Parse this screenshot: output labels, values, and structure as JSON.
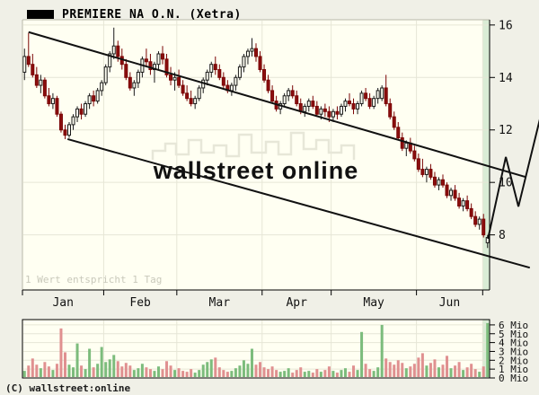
{
  "chart_data": {
    "type": "candlestick",
    "title": "PREMIERE NA O.N. (Xetra)",
    "period_note": "1 Wert entspricht 1 Tag",
    "watermark": "wallstreet online",
    "copyright": "(C) wallstreet:online",
    "x_axis": {
      "month_labels": [
        "Jan",
        "Feb",
        "Mar",
        "Apr",
        "May",
        "Jun"
      ],
      "month_boundaries_index": [
        0,
        20,
        38,
        59,
        76,
        97,
        113.3
      ]
    },
    "y_axis": {
      "ticks": [
        16,
        14,
        12,
        10,
        8
      ],
      "range": [
        5.9,
        16.2
      ]
    },
    "volume_axis": {
      "ticks": [
        6,
        5,
        4,
        3,
        2,
        1,
        0
      ],
      "suffix": "Mio",
      "range": [
        0,
        6.6
      ]
    },
    "candles": [
      [
        14.2,
        15.1,
        13.9,
        14.8
      ],
      [
        14.8,
        15.7,
        14.4,
        14.5
      ],
      [
        14.5,
        14.9,
        14.0,
        14.1
      ],
      [
        14.1,
        14.4,
        13.6,
        13.7
      ],
      [
        13.7,
        14.1,
        13.4,
        13.9
      ],
      [
        13.9,
        14.0,
        13.2,
        13.3
      ],
      [
        13.3,
        13.6,
        12.9,
        13.0
      ],
      [
        13.0,
        13.4,
        12.8,
        13.2
      ],
      [
        13.2,
        13.3,
        12.5,
        12.6
      ],
      [
        12.6,
        12.7,
        11.9,
        12.0
      ],
      [
        12.0,
        12.2,
        11.65,
        11.8
      ],
      [
        11.8,
        12.3,
        11.7,
        12.2
      ],
      [
        12.2,
        12.6,
        12.0,
        12.5
      ],
      [
        12.5,
        12.9,
        12.3,
        12.8
      ],
      [
        12.8,
        13.0,
        12.4,
        12.6
      ],
      [
        12.6,
        13.1,
        12.5,
        13.0
      ],
      [
        13.0,
        13.4,
        12.8,
        13.3
      ],
      [
        13.3,
        13.5,
        12.9,
        13.1
      ],
      [
        13.1,
        13.6,
        13.0,
        13.5
      ],
      [
        13.5,
        13.9,
        13.3,
        13.8
      ],
      [
        13.8,
        14.5,
        13.7,
        14.4
      ],
      [
        14.4,
        15.0,
        14.2,
        14.9
      ],
      [
        14.9,
        15.9,
        14.7,
        15.2
      ],
      [
        15.2,
        15.4,
        14.6,
        14.8
      ],
      [
        14.8,
        15.1,
        14.3,
        14.5
      ],
      [
        14.5,
        14.7,
        13.9,
        14.0
      ],
      [
        14.0,
        14.2,
        13.5,
        13.6
      ],
      [
        13.6,
        13.9,
        13.3,
        13.8
      ],
      [
        13.8,
        14.3,
        13.6,
        14.2
      ],
      [
        14.2,
        14.8,
        14.0,
        14.7
      ],
      [
        14.7,
        15.1,
        14.4,
        14.6
      ],
      [
        14.6,
        14.9,
        14.1,
        14.3
      ],
      [
        14.3,
        14.6,
        13.8,
        14.5
      ],
      [
        14.5,
        15.0,
        14.3,
        14.9
      ],
      [
        14.9,
        15.2,
        14.5,
        14.7
      ],
      [
        14.7,
        14.9,
        14.0,
        14.1
      ],
      [
        14.1,
        14.4,
        13.7,
        13.9
      ],
      [
        13.9,
        14.2,
        13.5,
        14.0
      ],
      [
        14.0,
        14.3,
        13.6,
        13.7
      ],
      [
        13.7,
        13.9,
        13.3,
        13.4
      ],
      [
        13.4,
        13.7,
        13.1,
        13.2
      ],
      [
        13.2,
        13.5,
        12.9,
        13.0
      ],
      [
        13.0,
        13.3,
        12.8,
        13.2
      ],
      [
        13.2,
        13.7,
        13.1,
        13.6
      ],
      [
        13.6,
        14.0,
        13.4,
        13.9
      ],
      [
        13.9,
        14.3,
        13.7,
        14.2
      ],
      [
        14.2,
        14.6,
        14.0,
        14.5
      ],
      [
        14.5,
        14.8,
        14.1,
        14.3
      ],
      [
        14.3,
        14.5,
        13.9,
        14.0
      ],
      [
        14.0,
        14.2,
        13.6,
        13.7
      ],
      [
        13.7,
        13.9,
        13.4,
        13.5
      ],
      [
        13.5,
        13.8,
        13.3,
        13.7
      ],
      [
        13.7,
        14.1,
        13.5,
        14.0
      ],
      [
        14.0,
        14.5,
        13.9,
        14.4
      ],
      [
        14.4,
        14.9,
        14.2,
        14.8
      ],
      [
        14.8,
        15.1,
        14.5,
        15.0
      ],
      [
        15.0,
        15.5,
        14.8,
        15.1
      ],
      [
        15.1,
        15.3,
        14.6,
        14.8
      ],
      [
        14.8,
        15.0,
        14.2,
        14.3
      ],
      [
        14.3,
        14.5,
        13.8,
        13.9
      ],
      [
        13.9,
        14.1,
        13.4,
        13.5
      ],
      [
        13.5,
        13.7,
        13.0,
        13.1
      ],
      [
        13.1,
        13.3,
        12.7,
        12.8
      ],
      [
        12.8,
        13.1,
        12.6,
        13.0
      ],
      [
        13.0,
        13.4,
        12.9,
        13.3
      ],
      [
        13.3,
        13.6,
        13.1,
        13.5
      ],
      [
        13.5,
        13.7,
        13.2,
        13.3
      ],
      [
        13.3,
        13.5,
        12.9,
        13.0
      ],
      [
        13.0,
        13.2,
        12.6,
        12.7
      ],
      [
        12.7,
        13.0,
        12.5,
        12.9
      ],
      [
        12.9,
        13.2,
        12.7,
        13.1
      ],
      [
        13.1,
        13.3,
        12.8,
        12.9
      ],
      [
        12.9,
        13.1,
        12.5,
        12.6
      ],
      [
        12.6,
        12.9,
        12.4,
        12.8
      ],
      [
        12.8,
        13.0,
        12.5,
        12.7
      ],
      [
        12.7,
        12.9,
        12.3,
        12.5
      ],
      [
        12.5,
        12.8,
        12.3,
        12.7
      ],
      [
        12.7,
        12.9,
        12.4,
        12.6
      ],
      [
        12.6,
        13.0,
        12.5,
        12.9
      ],
      [
        12.9,
        13.2,
        12.7,
        13.1
      ],
      [
        13.1,
        13.4,
        12.9,
        13.0
      ],
      [
        13.0,
        13.2,
        12.6,
        12.8
      ],
      [
        12.8,
        13.1,
        12.6,
        13.0
      ],
      [
        13.0,
        13.5,
        12.9,
        13.4
      ],
      [
        13.4,
        13.6,
        13.1,
        13.2
      ],
      [
        13.2,
        13.4,
        12.8,
        12.9
      ],
      [
        12.9,
        13.3,
        12.8,
        13.2
      ],
      [
        13.2,
        13.6,
        13.0,
        13.5
      ],
      [
        13.2,
        13.7,
        13.1,
        13.6
      ],
      [
        13.6,
        14.1,
        12.9,
        13.0
      ],
      [
        13.0,
        13.2,
        12.4,
        12.5
      ],
      [
        12.5,
        12.7,
        12.0,
        12.1
      ],
      [
        12.1,
        12.3,
        11.6,
        11.7
      ],
      [
        11.7,
        11.9,
        11.2,
        11.3
      ],
      [
        11.3,
        11.6,
        11.0,
        11.5
      ],
      [
        11.5,
        11.7,
        11.1,
        11.2
      ],
      [
        11.2,
        11.4,
        10.8,
        10.9
      ],
      [
        10.9,
        11.1,
        10.4,
        10.5
      ],
      [
        10.5,
        10.9,
        10.2,
        10.3
      ],
      [
        10.3,
        10.6,
        10.0,
        10.5
      ],
      [
        10.5,
        10.7,
        10.1,
        10.2
      ],
      [
        10.2,
        10.4,
        9.8,
        9.9
      ],
      [
        9.9,
        10.2,
        9.7,
        10.1
      ],
      [
        10.1,
        10.3,
        9.8,
        9.9
      ],
      [
        9.9,
        10.0,
        9.4,
        9.5
      ],
      [
        9.5,
        9.8,
        9.3,
        9.7
      ],
      [
        9.7,
        9.9,
        9.3,
        9.4
      ],
      [
        9.4,
        9.6,
        9.0,
        9.1
      ],
      [
        9.1,
        9.4,
        8.9,
        9.3
      ],
      [
        9.3,
        9.5,
        8.9,
        9.0
      ],
      [
        9.0,
        9.2,
        8.6,
        8.7
      ],
      [
        8.7,
        8.9,
        8.3,
        8.4
      ],
      [
        8.4,
        8.7,
        8.2,
        8.6
      ],
      [
        8.6,
        8.8,
        7.9,
        8.0
      ],
      [
        7.7,
        8.0,
        7.5,
        7.9
      ]
    ],
    "volumes_mio": [
      0.8,
      1.4,
      2.2,
      1.5,
      1.1,
      1.8,
      1.3,
      0.9,
      1.6,
      5.6,
      2.9,
      1.5,
      1.2,
      3.9,
      1.4,
      1.0,
      3.3,
      1.2,
      1.6,
      3.5,
      1.8,
      2.1,
      2.6,
      1.9,
      1.3,
      1.7,
      1.4,
      0.9,
      1.1,
      1.6,
      1.2,
      1.0,
      0.8,
      1.3,
      1.0,
      1.9,
      1.4,
      0.9,
      1.1,
      0.8,
      0.7,
      1.0,
      0.6,
      0.9,
      1.5,
      1.8,
      2.1,
      2.3,
      1.2,
      0.9,
      0.7,
      0.8,
      1.1,
      1.4,
      2.0,
      1.6,
      3.3,
      1.5,
      1.8,
      1.2,
      1.0,
      1.3,
      0.9,
      0.7,
      0.8,
      1.1,
      0.6,
      0.9,
      1.2,
      0.7,
      0.8,
      0.6,
      1.0,
      0.7,
      0.9,
      1.3,
      0.8,
      0.6,
      0.9,
      1.1,
      0.7,
      1.4,
      0.9,
      5.2,
      1.6,
      1.0,
      0.8,
      1.2,
      6.0,
      2.2,
      1.8,
      1.5,
      2.0,
      1.7,
      1.1,
      1.3,
      1.6,
      2.3,
      2.8,
      1.4,
      1.7,
      2.1,
      1.2,
      1.5,
      2.5,
      1.1,
      1.4,
      1.8,
      0.9,
      1.2,
      1.6,
      1.0,
      0.7,
      1.3,
      6.2
    ],
    "trend_lines": [
      {
        "name": "upper-channel-line",
        "i1": 1.0,
        "p1": 15.73,
        "i2": 123.3,
        "p2": 10.21
      },
      {
        "name": "lower-channel-line",
        "i1": 10.6,
        "p1": 11.65,
        "i2": 124.4,
        "p2": 6.75
      }
    ],
    "projection": {
      "points": [
        {
          "i": 114.1,
          "p": 7.85
        },
        {
          "i": 118.5,
          "p": 10.97
        },
        {
          "i": 121.6,
          "p": 9.08
        },
        {
          "i": 127.1,
          "p": 12.55
        }
      ]
    },
    "colors": {
      "page_bg": "#f0f0e7",
      "plot_bg": "#fffff2",
      "grid": "#e6e6d6",
      "band": "#d9ecd5",
      "candle_up_fill": "#fffff2",
      "candle_up_stroke": "#1a1a1a",
      "candle_down_fill": "#8b0e0e",
      "candle_down_stroke": "#7a0505",
      "volume_up": "#7cbc7c",
      "volume_down": "#e09090",
      "trend": "#111111",
      "watermark": "#e7e7d8",
      "frame_light": "#b9b9aa",
      "frame_dark": "#000000"
    }
  }
}
